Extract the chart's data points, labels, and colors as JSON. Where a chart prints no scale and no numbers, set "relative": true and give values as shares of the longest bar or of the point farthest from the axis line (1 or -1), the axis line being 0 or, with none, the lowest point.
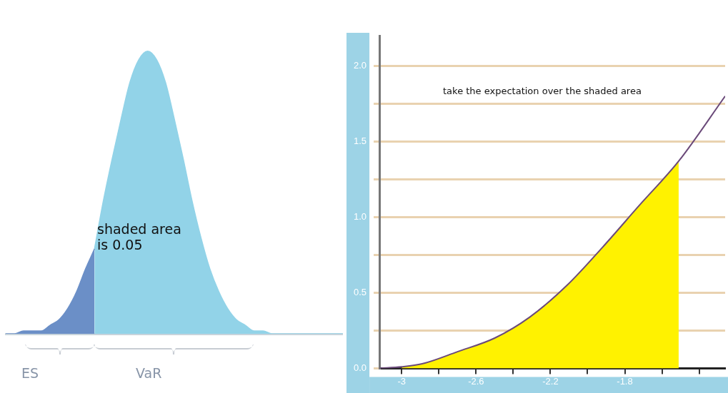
{
  "chart_data": [
    {
      "type": "area",
      "relative": true,
      "grid": false,
      "legend": false,
      "tick_labels": false,
      "categories": [
        null,
        null,
        null,
        null,
        null,
        null,
        null,
        null,
        null,
        null,
        null,
        null,
        null,
        null,
        null,
        null,
        null,
        null,
        null,
        null,
        null,
        null,
        null,
        null,
        null,
        null,
        null,
        null,
        null,
        null,
        null,
        null,
        null,
        null,
        null,
        null,
        null,
        null,
        null
      ],
      "series": [
        {
          "color": "#6b8fc7",
          "values": [
            0,
            0,
            0.01,
            0.01,
            0.01,
            0.03,
            0.05,
            0.09,
            0.15,
            0.23,
            0.3,
            null,
            null,
            null,
            null,
            null,
            null,
            null,
            null,
            null,
            null,
            null,
            null,
            null,
            null,
            null,
            null,
            null,
            null,
            null,
            null,
            null,
            null,
            null,
            null,
            null,
            null,
            null,
            null
          ]
        },
        {
          "color": "#92d3e8",
          "values": [
            null,
            null,
            null,
            null,
            null,
            null,
            null,
            null,
            null,
            null,
            0.3,
            0.47,
            0.62,
            0.76,
            0.89,
            0.97,
            1,
            0.97,
            0.89,
            0.76,
            0.62,
            0.47,
            0.34,
            0.23,
            0.15,
            0.09,
            0.05,
            0.03,
            0.01,
            0.01,
            0,
            0,
            0,
            0,
            0,
            0,
            0,
            0,
            0
          ]
        }
      ],
      "annotations": [
        "shaded area is 0.05",
        "ES",
        "VaR"
      ]
    },
    {
      "type": "line",
      "grid": "y",
      "legend": false,
      "xlim": [
        -3.12,
        -1.26
      ],
      "ylim": [
        0,
        2.2
      ],
      "xticks": [
        -3,
        {
          "value": -2.8,
          "label": null
        },
        -2.6,
        {
          "value": -2.4,
          "label": null
        },
        -2.2,
        {
          "value": -2.0,
          "label": null
        },
        -1.8,
        {
          "value": -1.6,
          "label": null
        },
        {
          "value": -1.4,
          "label": null
        }
      ],
      "yticks": [
        {
          "value": 0,
          "label": "0.0"
        },
        {
          "value": 0.25,
          "label": null
        },
        0.5,
        {
          "value": 0.75,
          "label": null
        },
        {
          "value": 1,
          "label": "1.0"
        },
        {
          "value": 1.25,
          "label": null
        },
        1.5,
        {
          "value": 1.75,
          "label": null
        },
        {
          "value": 2,
          "label": "2.0"
        }
      ],
      "series": [
        {
          "type": "area",
          "color": "#fff200",
          "x": [
            -3.0,
            -2.89,
            -2.7,
            -2.5,
            -2.31,
            -2.11,
            -1.92,
            -1.72,
            -1.51
          ],
          "values": [
            0.01,
            0.03,
            0.11,
            0.2,
            0.34,
            0.55,
            0.8,
            1.08,
            1.37
          ]
        },
        {
          "type": "line",
          "color": "#6b4a7a",
          "x": [
            -3.12,
            -3.0,
            -2.89,
            -2.7,
            -2.5,
            -2.31,
            -2.11,
            -1.92,
            -1.72,
            -1.51,
            -1.26
          ],
          "values": [
            0,
            0.01,
            0.03,
            0.11,
            0.2,
            0.34,
            0.55,
            0.8,
            1.08,
            1.37,
            1.8
          ]
        }
      ],
      "annotations": [
        "take the expectation over the shaded area"
      ]
    }
  ]
}
